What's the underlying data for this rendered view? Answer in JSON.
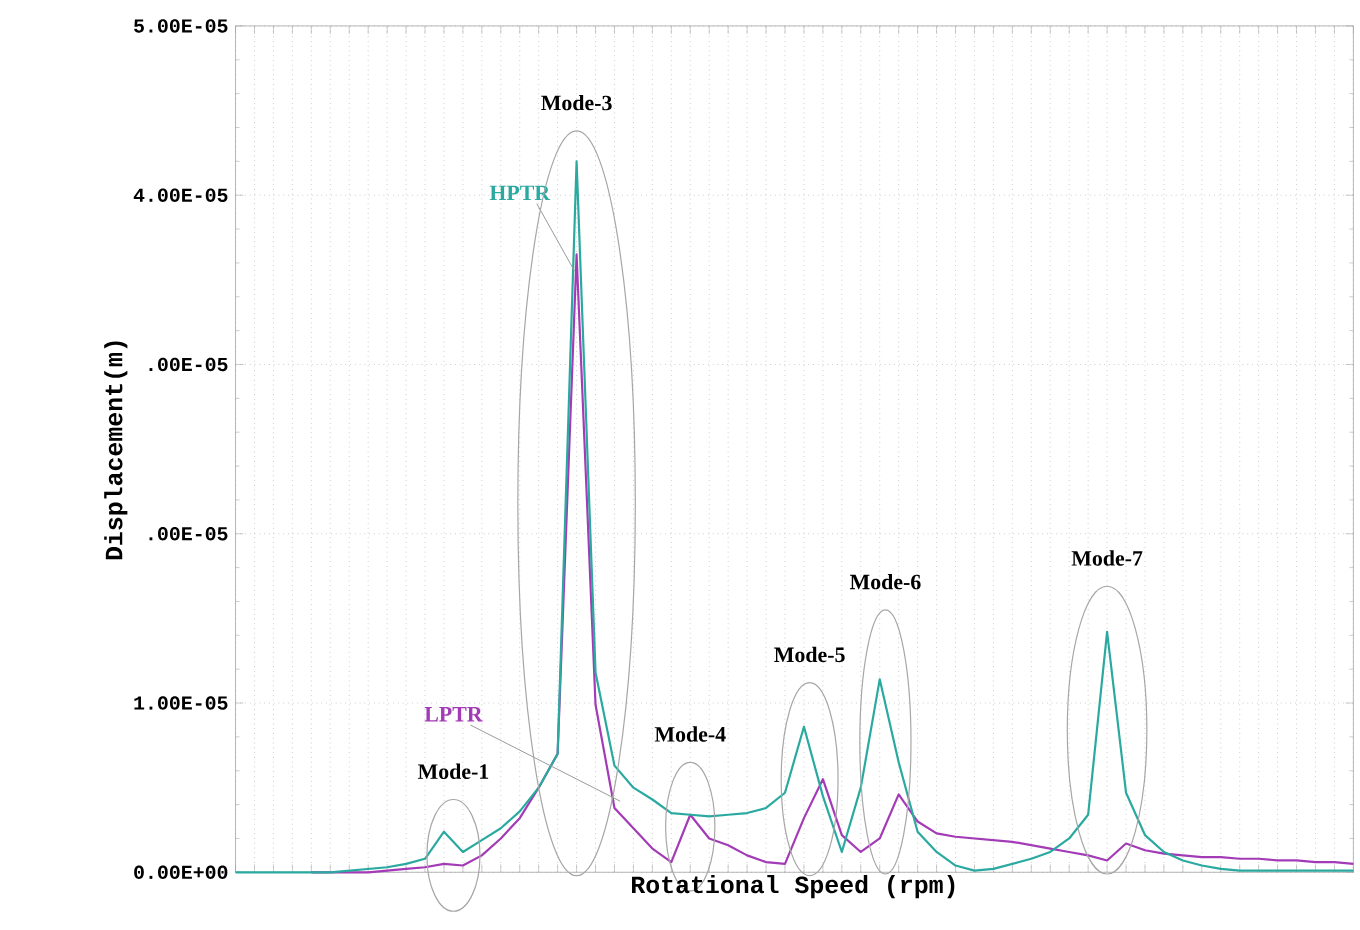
{
  "chart_data": {
    "type": "line",
    "xlabel": "Rotational Speed (rpm)",
    "ylabel": "Displacement(m)",
    "categories": [
      null,
      null,
      null,
      null,
      null,
      null,
      null,
      null,
      null,
      null,
      null,
      null,
      null,
      null,
      null,
      null,
      null,
      null,
      null,
      null,
      null,
      null,
      null,
      null,
      null,
      null,
      null,
      null,
      null,
      null,
      null,
      null,
      null,
      null,
      null,
      null,
      null,
      null,
      null,
      null,
      null,
      null,
      null,
      null,
      null,
      null,
      null,
      null,
      null,
      null,
      null,
      null,
      null,
      null,
      null,
      null,
      null,
      null,
      null,
      null
    ],
    "ylim": [
      0,
      5e-05
    ],
    "yticks": [
      {
        "value": 0,
        "label": "0.00E+00"
      },
      {
        "value": 1e-05,
        "label": "1.00E-05"
      },
      {
        "value": 2e-05,
        "label": ".00E-05"
      },
      {
        "value": 3e-05,
        "label": ".00E-05"
      },
      {
        "value": 4e-05,
        "label": "4.00E-05"
      },
      {
        "value": 5e-05,
        "label": "5.00E-05"
      }
    ],
    "grid": true,
    "legend": false,
    "marker": "none",
    "line_style": "solid",
    "series": [
      {
        "name": "LPTR",
        "color": "#a23bb5",
        "values": [
          null,
          null,
          null,
          null,
          0,
          0,
          0,
          0,
          1e-07,
          2e-07,
          3e-07,
          5e-07,
          4e-07,
          1e-06,
          2e-06,
          3.2e-06,
          5e-06,
          7e-06,
          3.65e-05,
          9.9e-06,
          3.8e-06,
          2.6e-06,
          1.4e-06,
          6e-07,
          3.4e-06,
          2e-06,
          1.6e-06,
          1e-06,
          6e-07,
          5e-07,
          3.2e-06,
          5.5e-06,
          2.2e-06,
          1.2e-06,
          2e-06,
          4.6e-06,
          3e-06,
          2.3e-06,
          2.1e-06,
          2e-06,
          1.9e-06,
          1.8e-06,
          1.6e-06,
          1.4e-06,
          1.2e-06,
          1e-06,
          7e-07,
          1.7e-06,
          1.3e-06,
          1.1e-06,
          1e-06,
          9e-07,
          9e-07,
          8e-07,
          8e-07,
          7e-07,
          7e-07,
          6e-07,
          6e-07,
          5e-07
        ]
      },
      {
        "name": "HPTR",
        "color": "#2aa9a0",
        "values": [
          0,
          0,
          0,
          0,
          0,
          0,
          1e-07,
          2e-07,
          3e-07,
          5e-07,
          8e-07,
          2.4e-06,
          1.2e-06,
          1.9e-06,
          2.6e-06,
          3.6e-06,
          5e-06,
          7e-06,
          4.2e-05,
          1.18e-05,
          6.3e-06,
          5e-06,
          4.3e-06,
          3.5e-06,
          3.4e-06,
          3.3e-06,
          3.4e-06,
          3.5e-06,
          3.8e-06,
          4.7e-06,
          8.6e-06,
          4.5e-06,
          1.2e-06,
          5e-06,
          1.14e-05,
          6.5e-06,
          2.4e-06,
          1.2e-06,
          4e-07,
          1e-07,
          2e-07,
          5e-07,
          8e-07,
          1.2e-06,
          2e-06,
          3.4e-06,
          1.42e-05,
          4.7e-06,
          2.2e-06,
          1.2e-06,
          7e-07,
          4e-07,
          2e-07,
          1e-07,
          1e-07,
          1e-07,
          1e-07,
          1e-07,
          1e-07,
          1e-07
        ]
      }
    ],
    "annotations": [
      "Mode-1",
      "Mode-3",
      "Mode-4",
      "Mode-5",
      "Mode-6",
      "Mode-7"
    ]
  }
}
